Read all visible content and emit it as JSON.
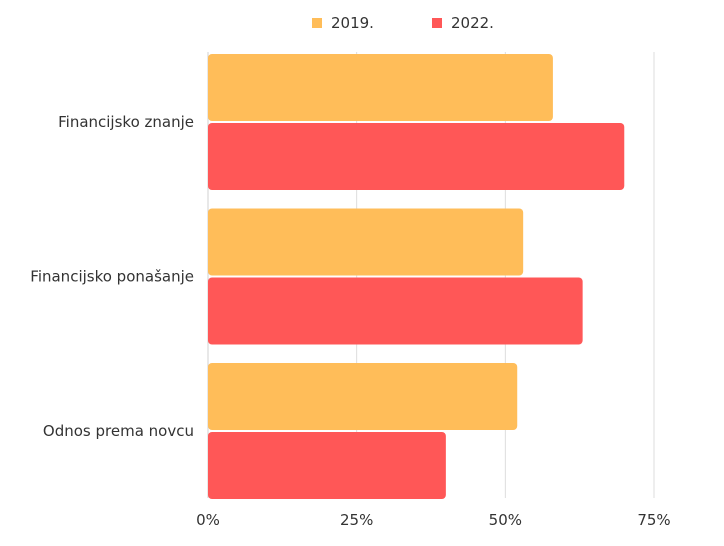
{
  "chart_data": {
    "type": "bar",
    "orientation": "horizontal",
    "title": "",
    "categories": [
      "Financijsko znanje",
      "Financijsko ponašanje",
      "Odnos prema novcu"
    ],
    "series": [
      {
        "name": "2019.",
        "color": "#FFBD59",
        "values": [
          58,
          53,
          52
        ]
      },
      {
        "name": "2022.",
        "color": "#FF5757",
        "values": [
          70,
          63,
          40
        ]
      }
    ],
    "x_ticks": [
      "0%",
      "25%",
      "50%",
      "75%"
    ],
    "x_tick_values": [
      0,
      25,
      50,
      75
    ],
    "xlim": [
      0,
      75
    ],
    "xlabel": "",
    "ylabel": "",
    "grid": true,
    "legend_position": "top-center"
  }
}
